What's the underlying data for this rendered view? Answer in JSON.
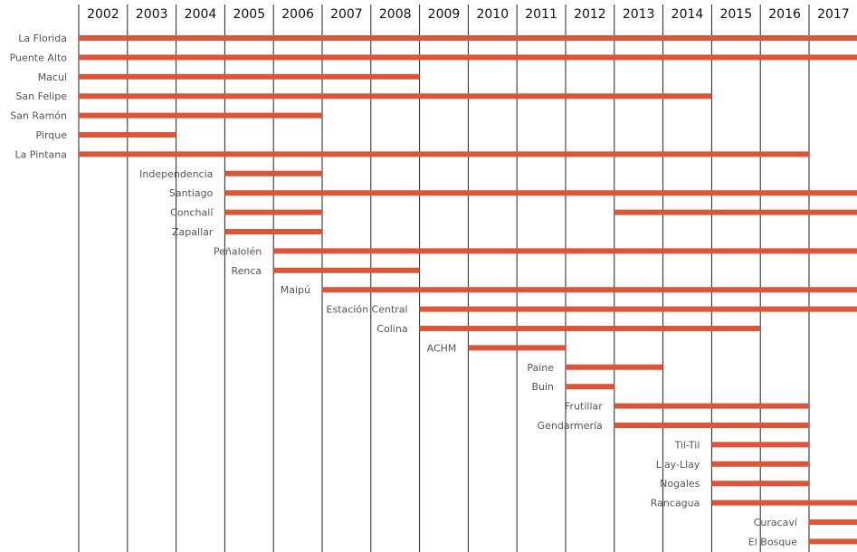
{
  "chart_data": {
    "type": "timeline",
    "title": "",
    "x_axis": {
      "position": "top",
      "ticks": [
        "2002",
        "2003",
        "2004",
        "2005",
        "2006",
        "2007",
        "2008",
        "2009",
        "2010",
        "2011",
        "2012",
        "2013",
        "2014",
        "2015",
        "2016",
        "2017"
      ],
      "range": [
        2001.5,
        2017.5
      ],
      "grid": true
    },
    "bar_color": "#dc5538",
    "series": [
      {
        "label": "La Florida",
        "start": 2001.5,
        "end": 2017.5
      },
      {
        "label": "Puente Alto",
        "start": 2001.5,
        "end": 2017.5
      },
      {
        "label": "Macul",
        "start": 2001.5,
        "end": 2008.5
      },
      {
        "label": "San Felipe",
        "start": 2001.5,
        "end": 2014.5
      },
      {
        "label": "San Ramón",
        "start": 2001.5,
        "end": 2006.5
      },
      {
        "label": "Pirque",
        "start": 2001.5,
        "end": 2003.5
      },
      {
        "label": "La Pintana",
        "start": 2001.5,
        "end": 2016.5
      },
      {
        "label": "Independencia",
        "start": 2004.5,
        "end": 2006.5
      },
      {
        "label": "Santiago",
        "start": 2004.5,
        "end": 2017.5
      },
      {
        "label": "Conchalí",
        "start": 2004.5,
        "end": 2006.5,
        "start2": 2012.5,
        "end2": 2017.5
      },
      {
        "label": "Zapallar",
        "start": 2004.5,
        "end": 2006.5
      },
      {
        "label": "Peñalolén",
        "start": 2005.5,
        "end": 2017.5
      },
      {
        "label": "Renca",
        "start": 2005.5,
        "end": 2008.5
      },
      {
        "label": "Maipú",
        "start": 2006.5,
        "end": 2017.5
      },
      {
        "label": "Estación Central",
        "start": 2008.5,
        "end": 2017.5
      },
      {
        "label": "Colina",
        "start": 2008.5,
        "end": 2015.5
      },
      {
        "label": "ACHM",
        "start": 2009.5,
        "end": 2011.5
      },
      {
        "label": "Paine",
        "start": 2011.5,
        "end": 2013.5
      },
      {
        "label": "Buin",
        "start": 2011.5,
        "end": 2012.5
      },
      {
        "label": "Frutillar",
        "start": 2012.5,
        "end": 2016.5
      },
      {
        "label": "Gendarmería",
        "start": 2012.5,
        "end": 2016.5
      },
      {
        "label": "Til-Til",
        "start": 2014.5,
        "end": 2016.5
      },
      {
        "label": "Llay-Llay",
        "start": 2014.5,
        "end": 2016.5
      },
      {
        "label": "Nogales",
        "start": 2014.5,
        "end": 2016.5
      },
      {
        "label": "Rancagua",
        "start": 2014.5,
        "end": 2017.5
      },
      {
        "label": "Curacaví",
        "start": 2016.5,
        "end": 2017.5
      },
      {
        "label": "El Bosque",
        "start": 2016.5,
        "end": 2017.5
      }
    ]
  }
}
